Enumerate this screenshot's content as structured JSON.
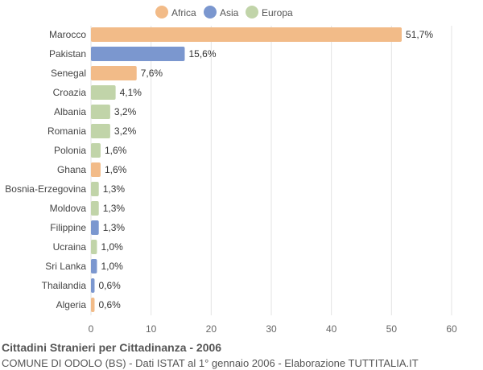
{
  "chart_data": {
    "type": "bar",
    "orientation": "horizontal",
    "legend": {
      "position": "top",
      "items": [
        {
          "label": "Africa",
          "color": "#f2bb88"
        },
        {
          "label": "Asia",
          "color": "#7b97cf"
        },
        {
          "label": "Europa",
          "color": "#c1d4a9"
        }
      ]
    },
    "categories": [
      "Marocco",
      "Pakistan",
      "Senegal",
      "Croazia",
      "Albania",
      "Romania",
      "Polonia",
      "Ghana",
      "Bosnia-Erzegovina",
      "Moldova",
      "Filippine",
      "Ucraina",
      "Sri Lanka",
      "Thailandia",
      "Algeria"
    ],
    "values": [
      51.7,
      15.6,
      7.6,
      4.1,
      3.2,
      3.2,
      1.6,
      1.6,
      1.3,
      1.3,
      1.3,
      1.0,
      1.0,
      0.6,
      0.6
    ],
    "value_labels": [
      "51,7%",
      "15,6%",
      "7,6%",
      "4,1%",
      "3,2%",
      "3,2%",
      "1,6%",
      "1,6%",
      "1,3%",
      "1,3%",
      "1,3%",
      "1,0%",
      "1,0%",
      "0,6%",
      "0,6%"
    ],
    "groups": [
      "Africa",
      "Asia",
      "Africa",
      "Europa",
      "Europa",
      "Europa",
      "Europa",
      "Africa",
      "Europa",
      "Europa",
      "Asia",
      "Europa",
      "Asia",
      "Asia",
      "Africa"
    ],
    "xlim": [
      0,
      60
    ],
    "xticks": [
      0,
      10,
      20,
      30,
      40,
      50,
      60
    ],
    "grid": true
  },
  "footer": {
    "title": "Cittadini Stranieri per Cittadinanza - 2006",
    "subtitle": "COMUNE DI ODOLO (BS) - Dati ISTAT al 1° gennaio 2006 - Elaborazione TUTTITALIA.IT"
  }
}
